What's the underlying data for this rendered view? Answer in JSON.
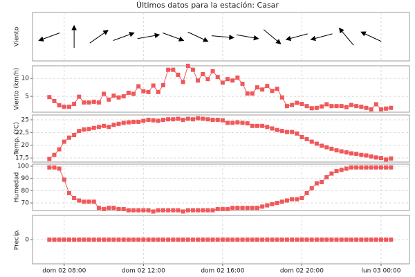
{
  "title": "Últimos datos para la estación: Casar",
  "chart_data": [
    {
      "type": "vector",
      "ylabel": "Viento",
      "color": "#000000",
      "x": [
        435,
        510,
        585,
        660,
        735,
        810,
        885,
        960,
        1035,
        1110,
        1185,
        1260,
        1335,
        1410
      ],
      "values": [
        250,
        0,
        55,
        70,
        80,
        110,
        115,
        95,
        100,
        130,
        255,
        255,
        320,
        295
      ],
      "xlim": [
        384,
        1526
      ],
      "grid": true
    },
    {
      "type": "line",
      "ylabel": "Viento (km/h)",
      "color": "#f0585a",
      "x": [
        435,
        450,
        465,
        480,
        495,
        510,
        525,
        540,
        555,
        570,
        585,
        600,
        615,
        630,
        645,
        660,
        675,
        690,
        705,
        720,
        735,
        750,
        765,
        780,
        795,
        810,
        825,
        840,
        855,
        870,
        885,
        900,
        915,
        930,
        945,
        960,
        975,
        990,
        1005,
        1020,
        1035,
        1050,
        1065,
        1080,
        1095,
        1110,
        1125,
        1140,
        1155,
        1170,
        1185,
        1200,
        1215,
        1230,
        1245,
        1260,
        1275,
        1290,
        1305,
        1320,
        1335,
        1350,
        1365,
        1380,
        1395,
        1410,
        1425,
        1440,
        1455,
        1470
      ],
      "values": [
        4.8,
        3.7,
        2.5,
        2.1,
        2.1,
        2.9,
        4.9,
        3.3,
        3.3,
        3.5,
        3.3,
        5.7,
        4.1,
        5.2,
        4.7,
        5,
        6,
        5.7,
        7.8,
        6.4,
        6.2,
        8,
        6.2,
        8.1,
        12.4,
        12.4,
        11,
        9,
        13.5,
        12.4,
        9.4,
        11.2,
        9.8,
        12,
        10.4,
        8.8,
        9.8,
        9.4,
        10.2,
        8.5,
        5.8,
        5.8,
        7.5,
        6.9,
        7.9,
        6.5,
        7.1,
        4.7,
        2.3,
        2.6,
        3.2,
        2.9,
        2.3,
        1.7,
        1.8,
        2.2,
        2.8,
        2.3,
        2.3,
        2.3,
        2.0,
        2.6,
        2.3,
        2.1,
        1.8,
        1.4,
        2.8,
        1.4,
        1.6,
        1.8
      ],
      "xlim": [
        384,
        1526
      ],
      "ylim": [
        0.6,
        13.5
      ],
      "yticks": [
        5,
        10
      ],
      "grid": true
    },
    {
      "type": "line",
      "ylabel": "Temp. (°C)",
      "color": "#f0585a",
      "x": [
        435,
        450,
        465,
        480,
        495,
        510,
        525,
        540,
        555,
        570,
        585,
        600,
        615,
        630,
        645,
        660,
        675,
        690,
        705,
        720,
        735,
        750,
        765,
        780,
        795,
        810,
        825,
        840,
        855,
        870,
        885,
        900,
        915,
        930,
        945,
        960,
        975,
        990,
        1005,
        1020,
        1035,
        1050,
        1065,
        1080,
        1095,
        1110,
        1125,
        1140,
        1155,
        1170,
        1185,
        1200,
        1215,
        1230,
        1245,
        1260,
        1275,
        1290,
        1305,
        1320,
        1335,
        1350,
        1365,
        1380,
        1395,
        1410,
        1425,
        1440,
        1455,
        1470
      ],
      "values": [
        17.3,
        18.1,
        19.2,
        20.7,
        21.5,
        22.0,
        22.8,
        23.1,
        23.2,
        23.4,
        23.6,
        23.8,
        23.6,
        24.0,
        24.2,
        24.4,
        24.5,
        24.6,
        24.6,
        24.8,
        25.0,
        24.9,
        24.8,
        25.0,
        25.1,
        25.1,
        25.2,
        25.0,
        25.2,
        25.1,
        25.3,
        25.2,
        25.1,
        25.0,
        25.0,
        24.9,
        24.4,
        24.4,
        24.5,
        24.4,
        24.3,
        23.8,
        23.8,
        23.8,
        23.6,
        23.3,
        23.0,
        22.8,
        22.6,
        22.6,
        22.3,
        21.6,
        21.2,
        20.7,
        20.3,
        19.9,
        19.6,
        19.3,
        19.0,
        18.8,
        18.6,
        18.4,
        18.3,
        18.1,
        18.0,
        17.8,
        17.6,
        17.5,
        17.2,
        17.4
      ],
      "xlim": [
        384,
        1526
      ],
      "ylim": [
        16.7,
        25.95
      ],
      "yticks": [
        {
          "value": 17.5,
          "label": "17,5"
        },
        20,
        {
          "value": 22.5,
          "label": "22,5"
        },
        25
      ],
      "grid": true
    },
    {
      "type": "line",
      "ylabel": "Humedad",
      "color": "#f0585a",
      "x": [
        435,
        450,
        465,
        480,
        495,
        510,
        525,
        540,
        555,
        570,
        585,
        600,
        615,
        630,
        645,
        660,
        675,
        690,
        705,
        720,
        735,
        750,
        765,
        780,
        795,
        810,
        825,
        840,
        855,
        870,
        885,
        900,
        915,
        930,
        945,
        960,
        975,
        990,
        1005,
        1020,
        1035,
        1050,
        1065,
        1080,
        1095,
        1110,
        1125,
        1140,
        1155,
        1170,
        1185,
        1200,
        1215,
        1230,
        1245,
        1260,
        1275,
        1290,
        1305,
        1320,
        1335,
        1350,
        1365,
        1380,
        1395,
        1410,
        1425,
        1440,
        1455,
        1470
      ],
      "values": [
        99,
        99,
        98,
        89,
        78,
        74,
        72,
        71,
        71,
        71,
        66,
        65,
        66,
        66,
        65,
        65,
        64,
        64,
        64,
        64,
        64,
        63,
        64,
        64,
        64,
        64,
        64,
        63,
        64,
        64,
        64,
        64,
        64,
        64,
        65,
        65,
        65,
        66,
        66,
        66,
        66,
        66,
        66,
        67,
        68,
        69,
        70,
        71,
        72,
        73,
        73,
        74,
        78,
        82,
        86,
        87,
        91,
        94,
        96,
        97,
        98,
        99,
        99,
        99,
        99,
        99,
        99,
        99,
        99,
        99
      ],
      "xlim": [
        384,
        1526
      ],
      "ylim": [
        63.8,
        101.7
      ],
      "yticks": [
        70,
        80,
        90,
        100
      ],
      "grid": true
    },
    {
      "type": "line",
      "ylabel": "Precip.",
      "color": "#f0585a",
      "x": [
        435,
        450,
        465,
        480,
        495,
        510,
        525,
        540,
        555,
        570,
        585,
        600,
        615,
        630,
        645,
        660,
        675,
        690,
        705,
        720,
        735,
        750,
        765,
        780,
        795,
        810,
        825,
        840,
        855,
        870,
        885,
        900,
        915,
        930,
        945,
        960,
        975,
        990,
        1005,
        1020,
        1035,
        1050,
        1065,
        1080,
        1095,
        1110,
        1125,
        1140,
        1155,
        1170,
        1185,
        1200,
        1215,
        1230,
        1245,
        1260,
        1275,
        1290,
        1305,
        1320,
        1335,
        1350,
        1365,
        1380,
        1395,
        1410,
        1425,
        1440,
        1455,
        1470
      ],
      "values": [
        0,
        0,
        0,
        0,
        0,
        0,
        0,
        0,
        0,
        0,
        0,
        0,
        0,
        0,
        0,
        0,
        0,
        0,
        0,
        0,
        0,
        0,
        0,
        0,
        0,
        0,
        0,
        0,
        0,
        0,
        0,
        0,
        0,
        0,
        0,
        0,
        0,
        0,
        0,
        0,
        0,
        0,
        0,
        0,
        0,
        0,
        0,
        0,
        0,
        0,
        0,
        0,
        0,
        0,
        0,
        0,
        0,
        0,
        0,
        0,
        0,
        0,
        0,
        0,
        0,
        0,
        0,
        0,
        0,
        0
      ],
      "xlim": [
        384,
        1526
      ],
      "ylim": [
        -1,
        1
      ],
      "yticks": [
        0
      ],
      "grid": true,
      "xticks": [
        {
          "value": 480,
          "label": "dom 02 08:00"
        },
        {
          "value": 720,
          "label": "dom 02 12:00"
        },
        {
          "value": 960,
          "label": "dom 02 16:00"
        },
        {
          "value": 1200,
          "label": "dom 02 20:00"
        },
        {
          "value": 1440,
          "label": "lun 03 00:00"
        }
      ]
    }
  ]
}
